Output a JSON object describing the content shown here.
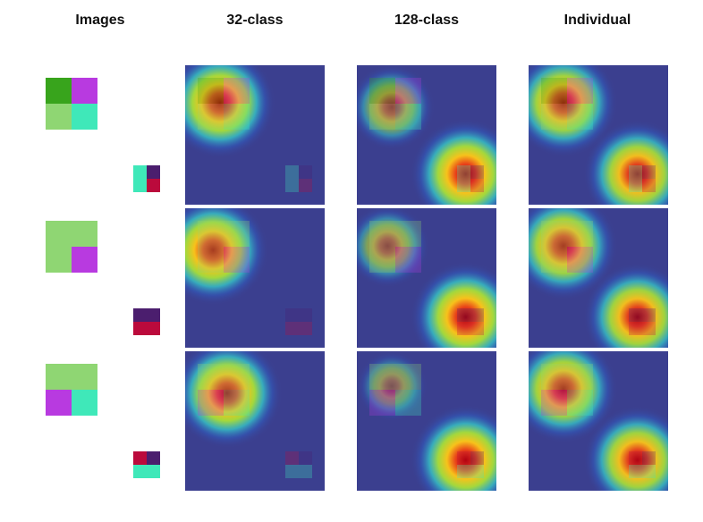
{
  "headers": [
    "Images",
    "32-class",
    "128-class",
    "Individual"
  ],
  "colors": {
    "dark_green": "#38a41c",
    "magenta": "#b83ae0",
    "light_green": "#8fd673",
    "cyan": "#3fe8b9",
    "purple": "#4b1e6e",
    "crimson": "#bb0a3c",
    "heatmap_base": "#3b3f8f"
  },
  "rows": [
    {
      "big_tile": [
        "dark_green",
        "magenta",
        "light_green",
        "cyan"
      ],
      "small_tile": [
        "cyan",
        "purple",
        "cyan",
        "crimson"
      ],
      "heat_32": [
        [
          0.25,
          0.27,
          1.0
        ]
      ],
      "heat_128": [
        [
          0.78,
          0.78,
          1.0
        ],
        [
          0.25,
          0.3,
          0.5
        ]
      ],
      "heat_ind": [
        [
          0.25,
          0.27,
          0.95
        ],
        [
          0.78,
          0.78,
          0.95
        ]
      ]
    },
    {
      "big_tile": [
        "light_green",
        "light_green",
        "light_green",
        "magenta"
      ],
      "small_tile": [
        "purple",
        "purple",
        "crimson",
        "crimson"
      ],
      "heat_32": [
        [
          0.2,
          0.3,
          1.0
        ]
      ],
      "heat_128": [
        [
          0.78,
          0.78,
          1.0
        ],
        [
          0.22,
          0.27,
          0.45
        ]
      ],
      "heat_ind": [
        [
          0.25,
          0.27,
          0.95
        ],
        [
          0.78,
          0.78,
          0.95
        ]
      ]
    },
    {
      "big_tile": [
        "light_green",
        "light_green",
        "magenta",
        "cyan"
      ],
      "small_tile": [
        "crimson",
        "purple",
        "cyan",
        "cyan"
      ],
      "heat_32": [
        [
          0.3,
          0.3,
          1.0
        ]
      ],
      "heat_128": [
        [
          0.78,
          0.78,
          1.0
        ],
        [
          0.25,
          0.25,
          0.2
        ]
      ],
      "heat_ind": [
        [
          0.25,
          0.27,
          0.95
        ],
        [
          0.78,
          0.78,
          0.95
        ]
      ]
    }
  ]
}
